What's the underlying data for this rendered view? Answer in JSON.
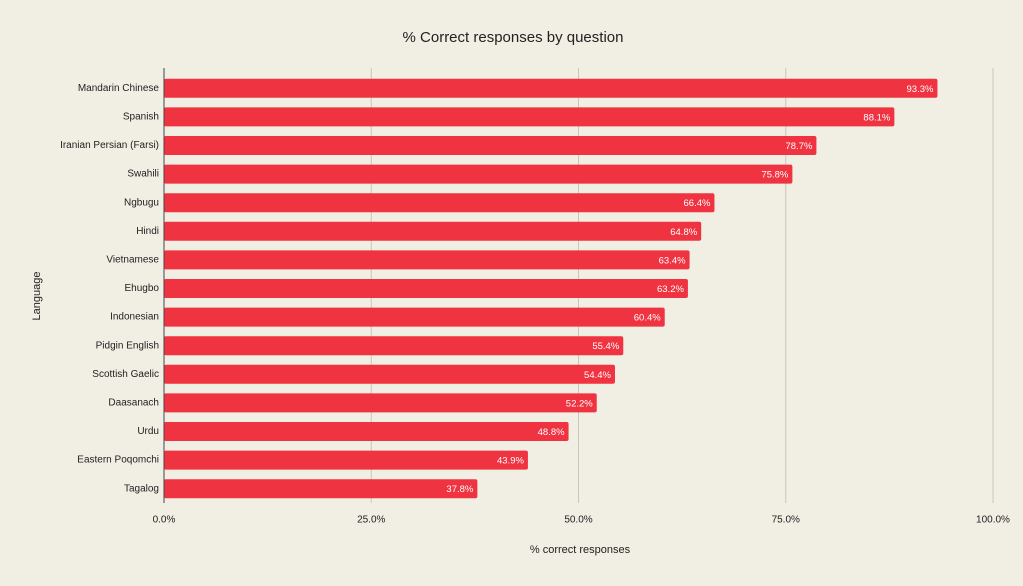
{
  "chart_data": {
    "type": "bar",
    "orientation": "horizontal",
    "title": "% Correct responses by question",
    "x_label": "% correct responses",
    "y_label": "Language",
    "color": "#ef3340",
    "grid": true,
    "categories": [
      "Mandarin Chinese",
      "Spanish",
      "Iranian Persian (Farsi)",
      "Swahili",
      "Ngbugu",
      "Hindi",
      "Vietnamese",
      "Ehugbo",
      "Indonesian",
      "Pidgin English",
      "Scottish Gaelic",
      "Daasanach",
      "Urdu",
      "Eastern Poqomchi",
      "Tagalog"
    ],
    "values": [
      93.3,
      88.1,
      78.7,
      75.8,
      66.4,
      64.8,
      63.4,
      63.2,
      60.4,
      55.4,
      54.4,
      52.2,
      48.8,
      43.9,
      37.8
    ],
    "value_labels": [
      "93.3%",
      "88.1%",
      "78.7%",
      "75.8%",
      "66.4%",
      "64.8%",
      "63.4%",
      "63.2%",
      "60.4%",
      "55.4%",
      "54.4%",
      "52.2%",
      "48.8%",
      "43.9%",
      "37.8%"
    ],
    "xlim": [
      0,
      100
    ],
    "xticks": [
      {
        "value": 0,
        "label": "0.0%"
      },
      {
        "value": 25,
        "label": "25.0%"
      },
      {
        "value": 50,
        "label": "50.0%"
      },
      {
        "value": 75,
        "label": "75.0%"
      },
      {
        "value": 100,
        "label": "100.0%"
      }
    ]
  }
}
